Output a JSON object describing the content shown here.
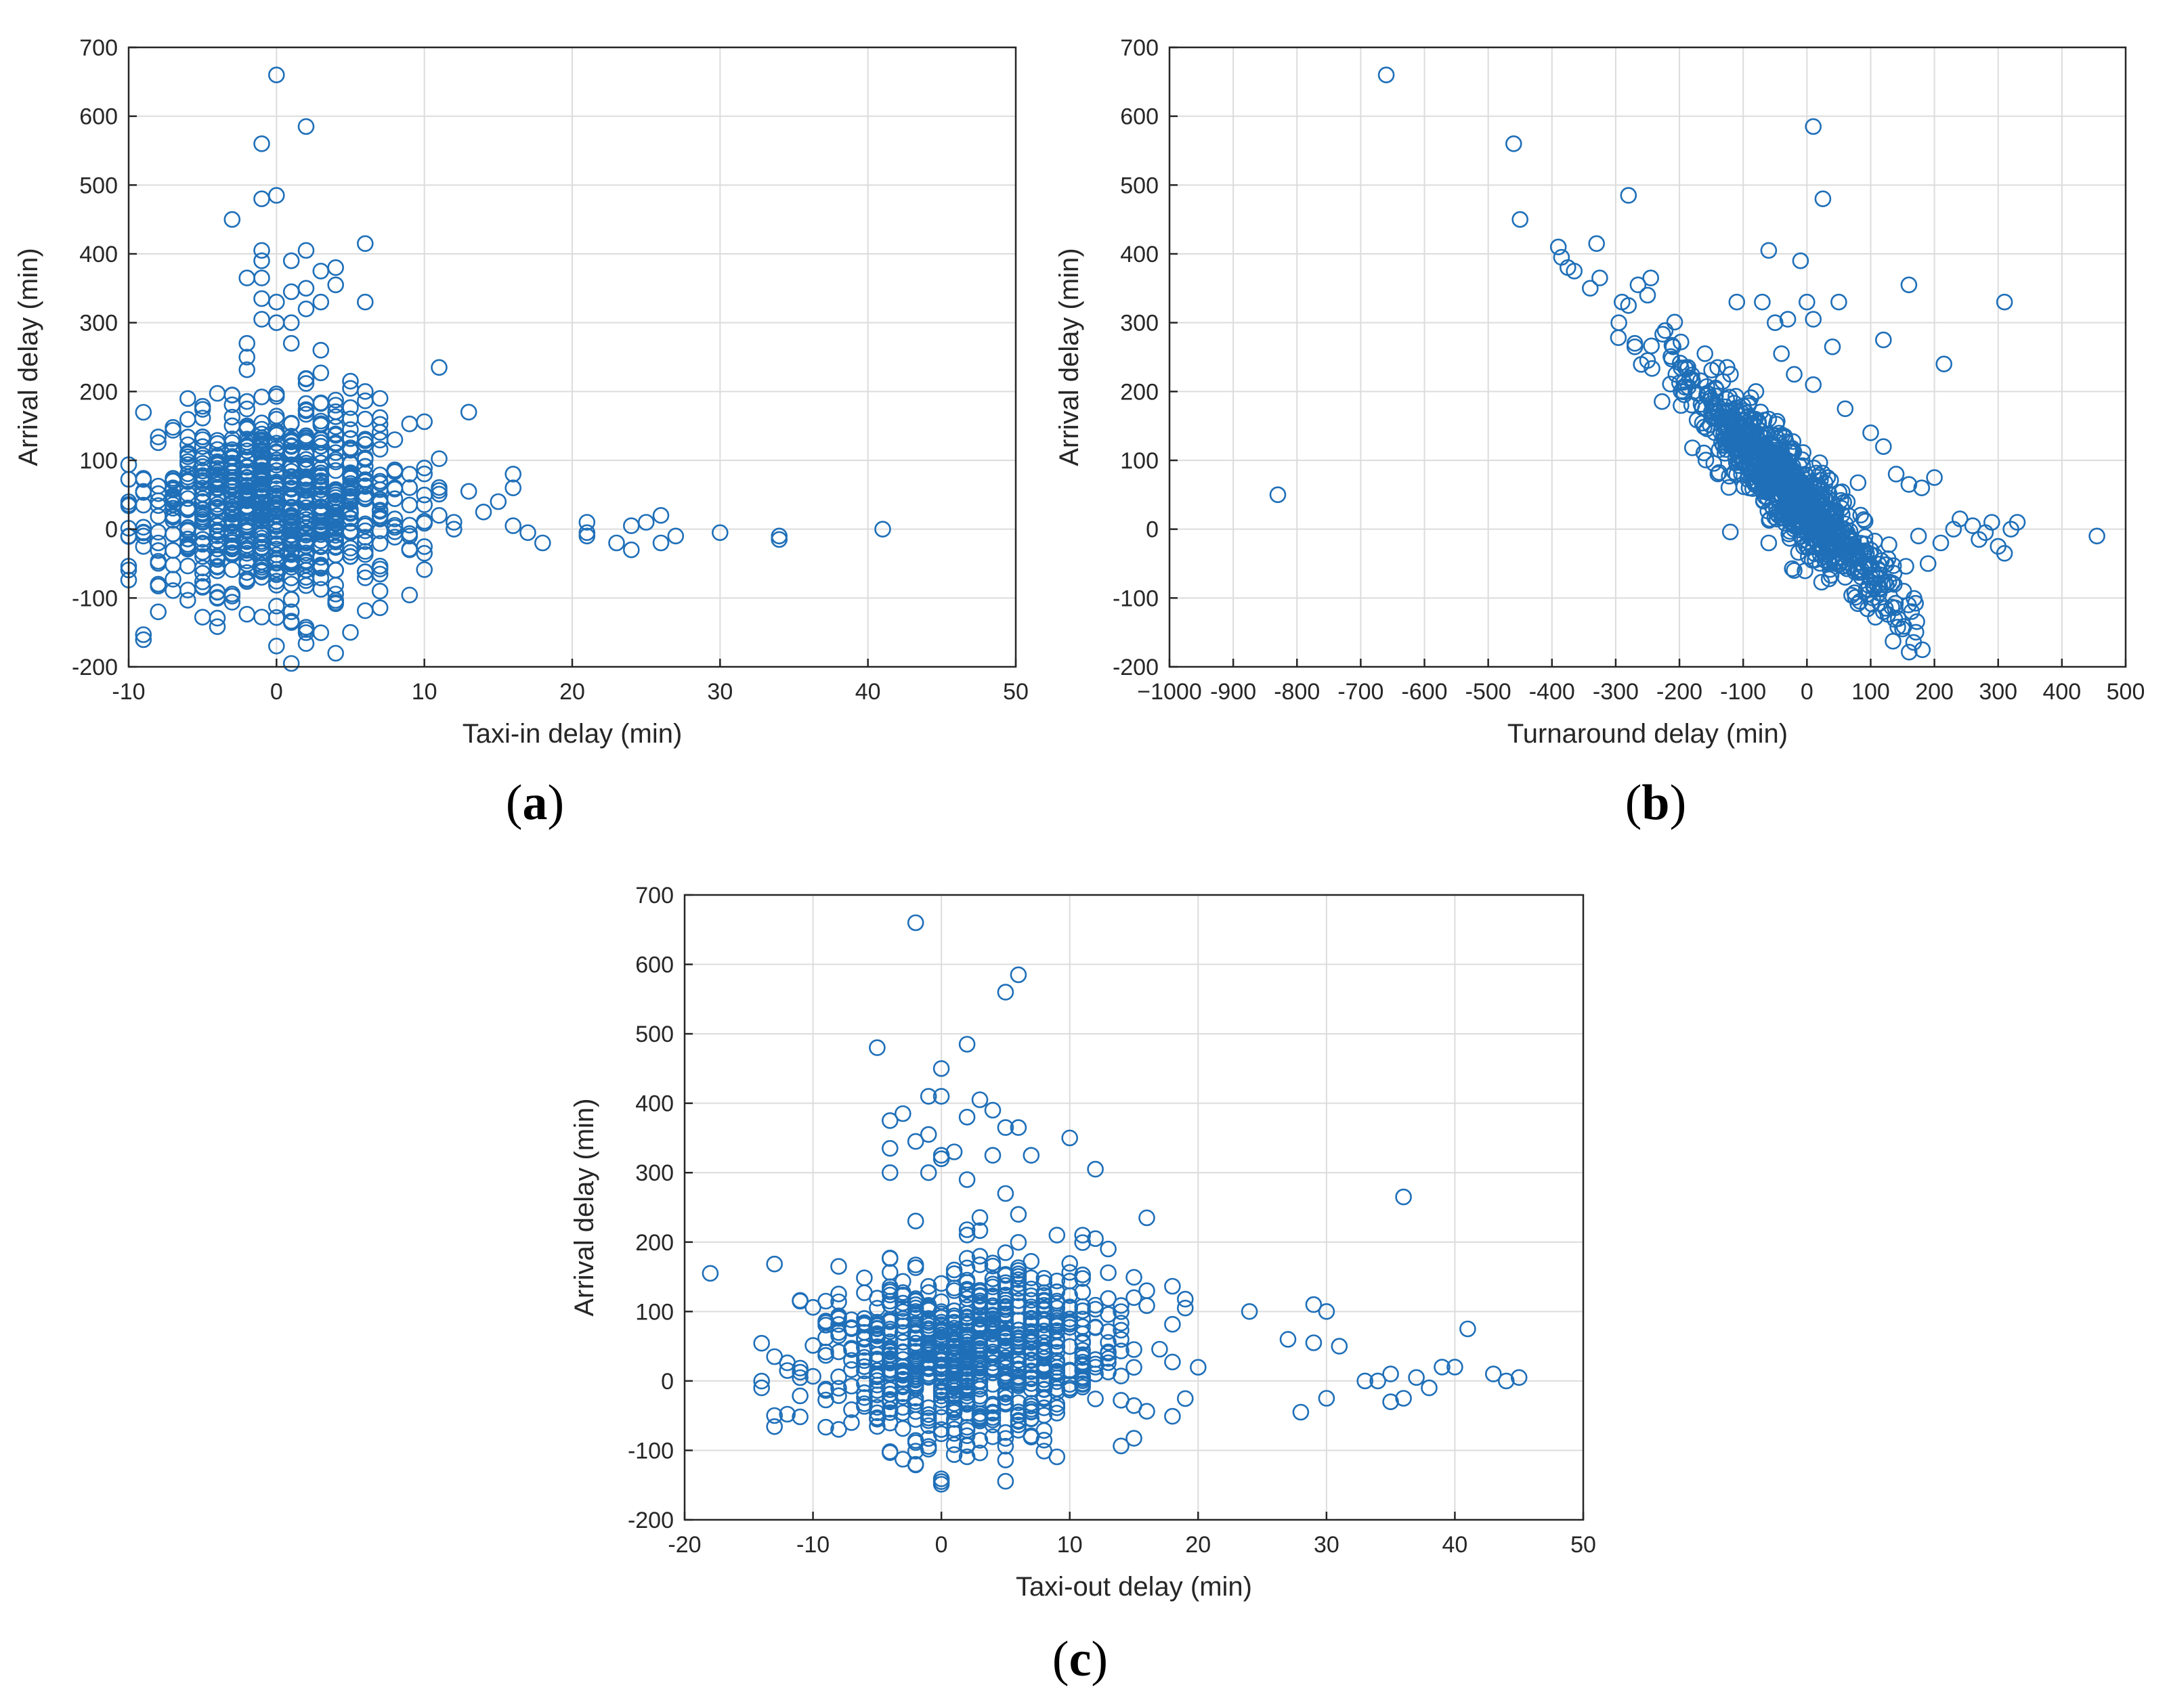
{
  "figure": {
    "panels": [
      "a",
      "b",
      "c"
    ]
  },
  "colors": {
    "marker": "#1f6fb8",
    "axis": "#262626",
    "grid": "#dcdcdc"
  },
  "chart_data": [
    {
      "id": "a",
      "type": "scatter",
      "title": "",
      "panel_label": "a",
      "xlabel": "Taxi-in delay (min)",
      "ylabel": "Arrival delay (min)",
      "xlim": [
        -10,
        50
      ],
      "ylim": [
        -200,
        700
      ],
      "xticks": [
        -10,
        0,
        10,
        20,
        30,
        40,
        50
      ],
      "yticks": [
        -200,
        -100,
        0,
        100,
        200,
        300,
        400,
        500,
        600,
        700
      ],
      "grid": true,
      "cluster": {
        "x_center": 0,
        "x_spread": 4.5,
        "y_center": 40,
        "y_spread": 70,
        "count": 900
      },
      "points": [
        [
          0,
          660
        ],
        [
          2,
          585
        ],
        [
          -1,
          560
        ],
        [
          -1,
          480
        ],
        [
          0,
          485
        ],
        [
          -3,
          450
        ],
        [
          6,
          415
        ],
        [
          -1,
          405
        ],
        [
          2,
          405
        ],
        [
          -1,
          390
        ],
        [
          1,
          390
        ],
        [
          4,
          380
        ],
        [
          3,
          375
        ],
        [
          4,
          355
        ],
        [
          -2,
          365
        ],
        [
          -1,
          365
        ],
        [
          1,
          345
        ],
        [
          2,
          350
        ],
        [
          -1,
          335
        ],
        [
          3,
          330
        ],
        [
          6,
          330
        ],
        [
          0,
          330
        ],
        [
          2,
          320
        ],
        [
          -1,
          305
        ],
        [
          1,
          300
        ],
        [
          0,
          300
        ],
        [
          1,
          270
        ],
        [
          3,
          260
        ],
        [
          -2,
          270
        ],
        [
          5,
          215
        ],
        [
          6,
          200
        ],
        [
          7,
          190
        ],
        [
          8,
          130
        ],
        [
          11,
          235
        ],
        [
          13,
          170
        ],
        [
          13,
          55
        ],
        [
          14,
          25
        ],
        [
          15,
          40
        ],
        [
          16,
          80
        ],
        [
          16,
          60
        ],
        [
          16,
          5
        ],
        [
          17,
          -5
        ],
        [
          18,
          -20
        ],
        [
          21,
          -5
        ],
        [
          21,
          10
        ],
        [
          21,
          -10
        ],
        [
          23,
          -20
        ],
        [
          24,
          5
        ],
        [
          24,
          -30
        ],
        [
          25,
          10
        ],
        [
          26,
          20
        ],
        [
          26,
          -20
        ],
        [
          27,
          -10
        ],
        [
          30,
          -5
        ],
        [
          34,
          -10
        ],
        [
          34,
          -15
        ],
        [
          41,
          0
        ],
        [
          5,
          -150
        ],
        [
          1,
          -120
        ],
        [
          -1,
          -70
        ],
        [
          2,
          -70
        ],
        [
          -9,
          -10
        ],
        [
          -10,
          -10
        ],
        [
          -9,
          55
        ],
        [
          -7,
          60
        ],
        [
          -5,
          130
        ],
        [
          -5,
          120
        ],
        [
          -3,
          195
        ],
        [
          -2,
          250
        ],
        [
          10,
          -35
        ],
        [
          9,
          -30
        ],
        [
          12,
          0
        ],
        [
          11,
          20
        ],
        [
          12,
          10
        ]
      ]
    },
    {
      "id": "b",
      "type": "scatter",
      "title": "",
      "panel_label": "b",
      "xlabel": "Turnaround delay (min)",
      "ylabel": "Arrival delay (min)",
      "xlim": [
        -1000,
        500
      ],
      "ylim": [
        -200,
        700
      ],
      "xticks": [
        -1000,
        -900,
        -800,
        -700,
        -600,
        -500,
        -400,
        -300,
        -200,
        -100,
        0,
        100,
        200,
        300,
        400,
        500
      ],
      "xtick_labels": [
        "−1000",
        "-900",
        "-800",
        "-700",
        "-600",
        "-500",
        "-400",
        "-300",
        "-200",
        "-100",
        "0",
        "100",
        "200",
        "300",
        "400",
        "500"
      ],
      "yticks": [
        -200,
        -100,
        0,
        100,
        200,
        300,
        400,
        500,
        600,
        700
      ],
      "grid": true,
      "cluster": {
        "x_center": -30,
        "x_spread": 80,
        "y_center": 60,
        "y_spread": 60,
        "count": 900,
        "slope": -0.9
      },
      "points": [
        [
          -660,
          660
        ],
        [
          -460,
          560
        ],
        [
          -450,
          450
        ],
        [
          -280,
          485
        ],
        [
          10,
          585
        ],
        [
          25,
          480
        ],
        [
          -390,
          410
        ],
        [
          -385,
          395
        ],
        [
          -375,
          380
        ],
        [
          -365,
          375
        ],
        [
          -340,
          350
        ],
        [
          -325,
          365
        ],
        [
          -330,
          415
        ],
        [
          -295,
          300
        ],
        [
          -290,
          330
        ],
        [
          -280,
          325
        ],
        [
          -270,
          270
        ],
        [
          -265,
          355
        ],
        [
          -250,
          340
        ],
        [
          -245,
          365
        ],
        [
          -60,
          405
        ],
        [
          -10,
          390
        ],
        [
          -50,
          300
        ],
        [
          -30,
          305
        ],
        [
          -40,
          255
        ],
        [
          -70,
          330
        ],
        [
          -110,
          330
        ],
        [
          0,
          330
        ],
        [
          50,
          330
        ],
        [
          10,
          305
        ],
        [
          40,
          265
        ],
        [
          120,
          275
        ],
        [
          160,
          355
        ],
        [
          215,
          240
        ],
        [
          310,
          330
        ],
        [
          -830,
          50
        ],
        [
          -270,
          265
        ],
        [
          -250,
          245
        ],
        [
          -210,
          265
        ],
        [
          -160,
          255
        ],
        [
          -140,
          235
        ],
        [
          -120,
          225
        ],
        [
          -80,
          200
        ],
        [
          -60,
          160
        ],
        [
          -20,
          225
        ],
        [
          10,
          210
        ],
        [
          60,
          175
        ],
        [
          100,
          140
        ],
        [
          120,
          120
        ],
        [
          140,
          80
        ],
        [
          160,
          65
        ],
        [
          180,
          60
        ],
        [
          200,
          75
        ],
        [
          175,
          -10
        ],
        [
          190,
          -50
        ],
        [
          210,
          -20
        ],
        [
          230,
          0
        ],
        [
          240,
          15
        ],
        [
          260,
          5
        ],
        [
          270,
          -15
        ],
        [
          280,
          -5
        ],
        [
          290,
          10
        ],
        [
          300,
          -25
        ],
        [
          310,
          -35
        ],
        [
          320,
          0
        ],
        [
          330,
          10
        ],
        [
          455,
          -10
        ],
        [
          120,
          -120
        ],
        [
          150,
          -145
        ],
        [
          60,
          -70
        ],
        [
          -60,
          -20
        ],
        [
          -20,
          -60
        ],
        [
          80,
          -40
        ]
      ]
    },
    {
      "id": "c",
      "type": "scatter",
      "title": "",
      "panel_label": "c",
      "xlabel": "Taxi-out delay (min)",
      "ylabel": "Arrival delay (min)",
      "xlim": [
        -20,
        50
      ],
      "ylim": [
        -200,
        700
      ],
      "xticks": [
        -20,
        -10,
        0,
        10,
        20,
        30,
        40,
        50
      ],
      "yticks": [
        -200,
        -100,
        0,
        100,
        200,
        300,
        400,
        500,
        600,
        700
      ],
      "grid": true,
      "cluster": {
        "x_center": 2,
        "x_spread": 6,
        "y_center": 40,
        "y_spread": 65,
        "count": 900
      },
      "points": [
        [
          -2,
          660
        ],
        [
          6,
          585
        ],
        [
          5,
          560
        ],
        [
          2,
          485
        ],
        [
          -5,
          480
        ],
        [
          0,
          450
        ],
        [
          3,
          405
        ],
        [
          -1,
          410
        ],
        [
          4,
          390
        ],
        [
          0,
          410
        ],
        [
          -4,
          375
        ],
        [
          -3,
          385
        ],
        [
          2,
          380
        ],
        [
          5,
          365
        ],
        [
          6,
          365
        ],
        [
          7,
          325
        ],
        [
          4,
          325
        ],
        [
          1,
          330
        ],
        [
          0,
          325
        ],
        [
          0,
          320
        ],
        [
          -2,
          345
        ],
        [
          -1,
          355
        ],
        [
          -4,
          335
        ],
        [
          -4,
          300
        ],
        [
          -1,
          300
        ],
        [
          2,
          290
        ],
        [
          5,
          270
        ],
        [
          6,
          240
        ],
        [
          10,
          350
        ],
        [
          12,
          305
        ],
        [
          16,
          235
        ],
        [
          11,
          210
        ],
        [
          12,
          205
        ],
        [
          13,
          190
        ],
        [
          15,
          120
        ],
        [
          16,
          130
        ],
        [
          19,
          105
        ],
        [
          24,
          100
        ],
        [
          27,
          60
        ],
        [
          29,
          110
        ],
        [
          29,
          55
        ],
        [
          30,
          100
        ],
        [
          31,
          50
        ],
        [
          36,
          265
        ],
        [
          41,
          75
        ],
        [
          40,
          20
        ],
        [
          39,
          20
        ],
        [
          43,
          10
        ],
        [
          44,
          0
        ],
        [
          45,
          5
        ],
        [
          37,
          5
        ],
        [
          38,
          -10
        ],
        [
          35,
          -30
        ],
        [
          36,
          -25
        ],
        [
          33,
          0
        ],
        [
          34,
          0
        ],
        [
          35,
          10
        ],
        [
          30,
          -25
        ],
        [
          28,
          -45
        ],
        [
          -14,
          -10
        ],
        [
          -13,
          35
        ],
        [
          -12,
          15
        ],
        [
          -11,
          115
        ],
        [
          -9,
          115
        ],
        [
          -8,
          165
        ],
        [
          -7,
          -60
        ],
        [
          -5,
          -55
        ],
        [
          -2,
          -120
        ],
        [
          0,
          -145
        ],
        [
          0,
          -70
        ]
      ]
    }
  ]
}
